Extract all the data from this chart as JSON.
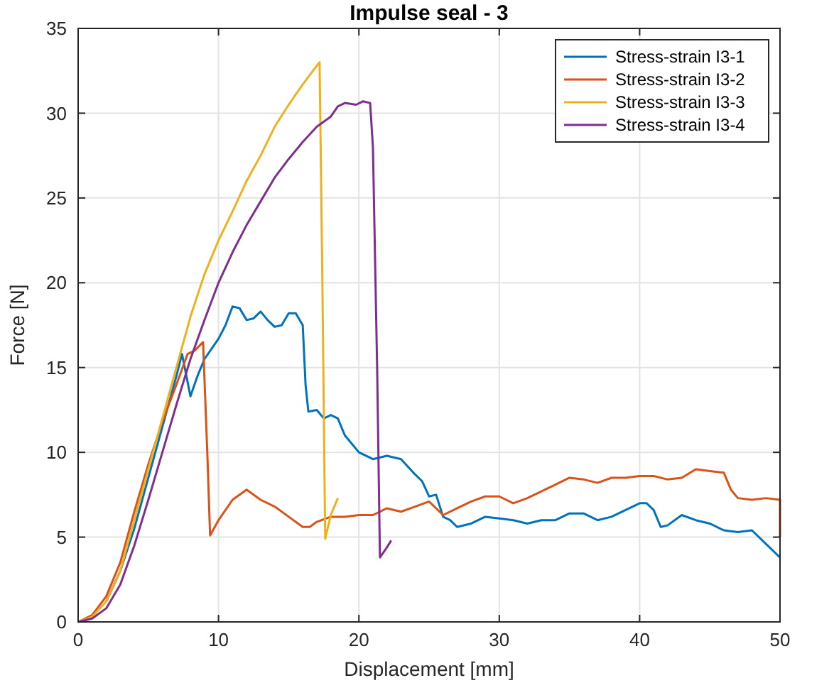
{
  "chart_data": {
    "type": "line",
    "title": "Impulse seal - 3",
    "xlabel": "Displacement [mm]",
    "ylabel": "Force [N]",
    "xlim": [
      0,
      50
    ],
    "ylim": [
      0,
      35
    ],
    "xticks": [
      0,
      10,
      20,
      30,
      40,
      50
    ],
    "yticks": [
      0,
      5,
      10,
      15,
      20,
      25,
      30,
      35
    ],
    "grid": true,
    "legend": "top right",
    "line_style": "solid",
    "series": [
      {
        "name": "Stress-strain I3-1",
        "color": "#0072bd",
        "x": [
          2,
          3,
          4,
          5,
          6,
          7,
          7.4,
          8,
          8.5,
          9,
          10,
          10.5,
          11,
          11.5,
          12,
          12.5,
          13,
          13.5,
          14,
          14.5,
          15,
          15.5,
          16,
          16.2,
          16.4,
          17,
          17.5,
          18,
          18.5,
          19,
          20,
          21,
          22,
          23,
          24,
          24.5,
          25,
          25.5,
          26,
          26.5,
          27,
          28,
          29,
          30,
          31,
          32,
          33,
          34,
          35,
          36,
          37,
          38,
          39,
          40,
          40.5,
          41,
          41.5,
          42,
          43,
          44,
          45,
          46,
          47,
          48,
          49,
          50
        ],
        "values": [
          1.2,
          3,
          5.5,
          8.5,
          11.5,
          14.5,
          15.8,
          13.3,
          14.5,
          15.5,
          16.7,
          17.5,
          18.6,
          18.5,
          17.8,
          17.9,
          18.3,
          17.8,
          17.4,
          17.5,
          18.2,
          18.2,
          17.5,
          14,
          12.4,
          12.5,
          12,
          12.2,
          12,
          11,
          10,
          9.6,
          9.8,
          9.6,
          8.7,
          8.3,
          7.4,
          7.5,
          6.2,
          6,
          5.6,
          5.8,
          6.2,
          6.1,
          6,
          5.8,
          6,
          6,
          6.4,
          6.4,
          6,
          6.2,
          6.6,
          7,
          7,
          6.6,
          5.6,
          5.7,
          6.3,
          6,
          5.8,
          5.4,
          5.3,
          5.4,
          4.6,
          3.8
        ]
      },
      {
        "name": "Stress-strain I3-2",
        "color": "#d95319",
        "x": [
          0,
          1,
          2,
          3,
          4,
          5,
          6,
          7,
          7.8,
          8.3,
          8.9,
          9.2,
          9.4,
          10,
          11,
          12,
          13,
          14,
          15,
          16,
          16.5,
          17,
          18,
          19,
          20,
          21,
          22,
          23,
          24,
          25,
          26,
          27,
          28,
          29,
          30,
          31,
          32,
          33,
          34,
          35,
          36,
          37,
          38,
          39,
          40,
          41,
          42,
          43,
          44,
          45,
          46,
          46.5,
          47,
          48,
          49,
          50,
          50
        ],
        "values": [
          0,
          0.4,
          1.5,
          3.5,
          6.5,
          9.3,
          11.8,
          14,
          15.8,
          16,
          16.5,
          10,
          5.1,
          6,
          7.2,
          7.8,
          7.2,
          6.8,
          6.2,
          5.6,
          5.6,
          5.9,
          6.2,
          6.2,
          6.3,
          6.3,
          6.7,
          6.5,
          6.8,
          7.1,
          6.3,
          6.7,
          7.1,
          7.4,
          7.4,
          7,
          7.3,
          7.7,
          8.1,
          8.5,
          8.4,
          8.2,
          8.5,
          8.5,
          8.6,
          8.6,
          8.4,
          8.5,
          9,
          8.9,
          8.8,
          7.8,
          7.3,
          7.2,
          7.3,
          7.2,
          5
        ]
      },
      {
        "name": "Stress-strain I3-3",
        "color": "#edb120",
        "x": [
          0,
          1,
          2,
          3,
          4,
          5,
          6,
          7,
          8,
          9,
          10,
          11,
          12,
          13,
          14,
          15,
          16,
          17,
          17.2,
          17.4,
          17.6,
          18,
          18.5
        ],
        "values": [
          0,
          0.3,
          1.2,
          3,
          6,
          9,
          12,
          15,
          18,
          20.5,
          22.5,
          24.2,
          26,
          27.5,
          29.2,
          30.5,
          31.7,
          32.8,
          33,
          20,
          4.9,
          6.3,
          7.3
        ]
      },
      {
        "name": "Stress-strain I3-4",
        "color": "#7e2f8e",
        "x": [
          0,
          1,
          2,
          3,
          4,
          5,
          6,
          7,
          8,
          9,
          10,
          11,
          12,
          13,
          14,
          15,
          16,
          17,
          18,
          18.5,
          19,
          19.8,
          20.3,
          20.8,
          21,
          21.3,
          21.5,
          22,
          22.3
        ],
        "values": [
          0,
          0.2,
          0.8,
          2.2,
          4.5,
          7.2,
          10,
          12.8,
          15.5,
          17.8,
          20,
          21.8,
          23.4,
          24.8,
          26.2,
          27.3,
          28.3,
          29.2,
          29.8,
          30.4,
          30.6,
          30.5,
          30.7,
          30.6,
          28,
          15,
          3.8,
          4.4,
          4.8
        ]
      }
    ]
  }
}
